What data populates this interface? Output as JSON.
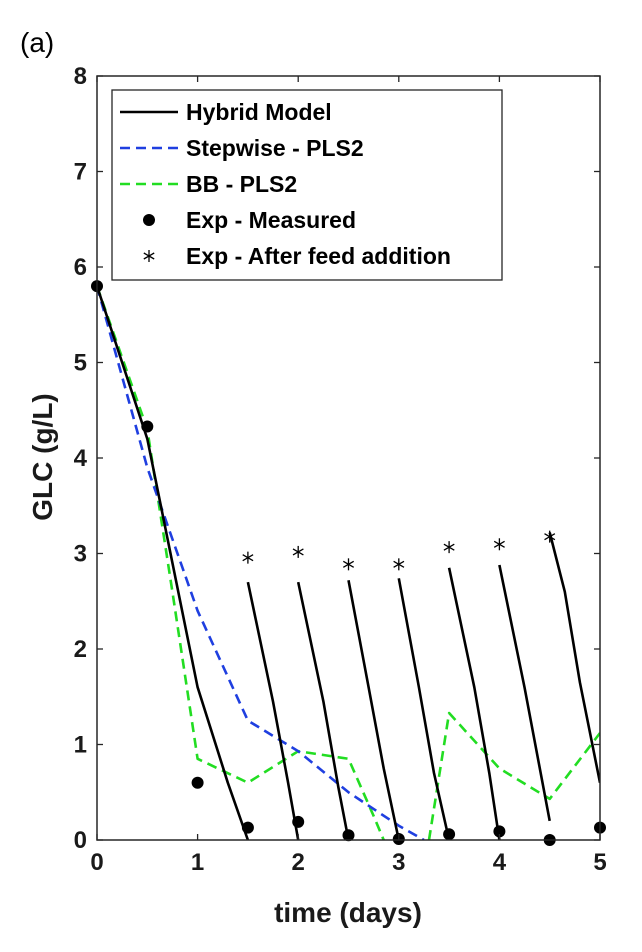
{
  "panel_label": "(a)",
  "chart_data": {
    "type": "line",
    "xlabel": "time (days)",
    "ylabel": "GLC (g/L)",
    "xlim": [
      0,
      5
    ],
    "ylim": [
      0,
      8
    ],
    "x_ticks": [
      "0",
      "1",
      "2",
      "3",
      "4",
      "5"
    ],
    "y_ticks": [
      "0",
      "1",
      "2",
      "3",
      "4",
      "5",
      "6",
      "7",
      "8"
    ],
    "grid": false,
    "legend_position": "top-left",
    "colors": {
      "hybrid": "#000000",
      "stepwise": "#1f3fe0",
      "bb": "#22dd22",
      "measured": "#000000",
      "feed": "#000000"
    },
    "series": [
      {
        "name": "Hybrid Model",
        "style": "solid",
        "segments": [
          [
            [
              0,
              5.8
            ],
            [
              0.5,
              4.2
            ],
            [
              1.0,
              1.6
            ],
            [
              1.3,
              0.6
            ],
            [
              1.5,
              0.0
            ]
          ],
          [
            [
              1.5,
              2.7
            ],
            [
              1.75,
              1.45
            ],
            [
              1.9,
              0.6
            ],
            [
              2.0,
              0.0
            ]
          ],
          [
            [
              2.0,
              2.7
            ],
            [
              2.25,
              1.45
            ],
            [
              2.4,
              0.55
            ],
            [
              2.5,
              0.0
            ]
          ],
          [
            [
              2.5,
              2.72
            ],
            [
              2.7,
              1.6
            ],
            [
              2.85,
              0.75
            ],
            [
              3.0,
              0.0
            ]
          ],
          [
            [
              3.0,
              2.74
            ],
            [
              3.2,
              1.6
            ],
            [
              3.35,
              0.7
            ],
            [
              3.5,
              0.0
            ]
          ],
          [
            [
              3.5,
              2.85
            ],
            [
              3.75,
              1.6
            ],
            [
              3.9,
              0.7
            ],
            [
              4.0,
              0.0
            ]
          ],
          [
            [
              4.0,
              2.88
            ],
            [
              4.25,
              1.6
            ],
            [
              4.5,
              0.2
            ]
          ],
          [
            [
              4.5,
              3.22
            ],
            [
              4.65,
              2.6
            ],
            [
              4.8,
              1.65
            ],
            [
              5.0,
              0.6
            ]
          ]
        ]
      },
      {
        "name": "Stepwise - PLS2",
        "style": "dashed",
        "segments": [
          [
            [
              0,
              5.8
            ],
            [
              0.5,
              3.9
            ],
            [
              1.0,
              2.4
            ],
            [
              1.5,
              1.25
            ],
            [
              2.0,
              0.93
            ],
            [
              2.5,
              0.5
            ],
            [
              3.0,
              0.15
            ],
            [
              3.25,
              0.0
            ]
          ]
        ]
      },
      {
        "name": "BB - PLS2",
        "style": "dashed",
        "segments": [
          [
            [
              0,
              5.8
            ],
            [
              0.5,
              4.3
            ],
            [
              0.75,
              2.6
            ],
            [
              1.0,
              0.85
            ],
            [
              1.5,
              0.6
            ],
            [
              2.0,
              0.93
            ],
            [
              2.5,
              0.85
            ],
            [
              2.75,
              0.25
            ],
            [
              2.85,
              0.0
            ]
          ],
          [
            [
              3.3,
              0.0
            ],
            [
              3.5,
              1.33
            ],
            [
              4.0,
              0.75
            ],
            [
              4.5,
              0.43
            ],
            [
              5.0,
              1.12
            ]
          ]
        ]
      }
    ],
    "markers": [
      {
        "name": "Exp - Measured",
        "symbol": "circle",
        "points": [
          [
            0,
            5.8
          ],
          [
            0.5,
            4.33
          ],
          [
            1.0,
            0.6
          ],
          [
            1.5,
            0.13
          ],
          [
            2.0,
            0.19
          ],
          [
            2.5,
            0.05
          ],
          [
            3.0,
            0.01
          ],
          [
            3.5,
            0.06
          ],
          [
            4.0,
            0.09
          ],
          [
            4.5,
            0.0
          ],
          [
            5.0,
            0.13
          ]
        ]
      },
      {
        "name": "Exp - After feed addition",
        "symbol": "asterisk",
        "points": [
          [
            1.5,
            2.81
          ],
          [
            2.0,
            2.87
          ],
          [
            2.5,
            2.74
          ],
          [
            3.0,
            2.74
          ],
          [
            3.5,
            2.92
          ],
          [
            4.0,
            2.95
          ],
          [
            4.5,
            3.03
          ]
        ]
      }
    ]
  }
}
